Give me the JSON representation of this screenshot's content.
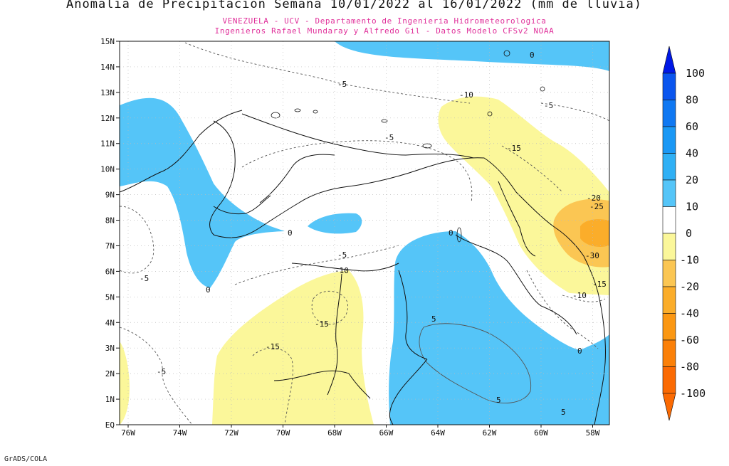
{
  "title": "Anomalia de Precipitacion Semana 10/01/2022 al 16/01/2022 (mm de lluvia)",
  "subtitle_line1": "VENEZUELA - UCV - Departamento de Ingenieria Hidrometeorologica",
  "subtitle_line2": "Ingenieros Rafael Mundaray y Alfredo Gil - Datos Modelo CFSv2 NOAA",
  "footer": "GrADS/COLA",
  "map": {
    "lat_labels": [
      "15N",
      "14N",
      "13N",
      "12N",
      "11N",
      "10N",
      "9N",
      "8N",
      "7N",
      "6N",
      "5N",
      "4N",
      "3N",
      "2N",
      "1N",
      "EQ"
    ],
    "lon_labels": [
      "76W",
      "74W",
      "72W",
      "70W",
      "68W",
      "66W",
      "64W",
      "62W",
      "60W",
      "58W"
    ],
    "contour_labels": {
      "c0_a": "0",
      "c0_b": "0",
      "c0_c": "0",
      "c0_d": "0",
      "c0_e": "0",
      "c5_a": "5",
      "c5_b": "5",
      "c5_c": "5",
      "cm5_a": "-5",
      "cm5_b": "-5",
      "cm5_c": "-5",
      "cm5_d": "-5",
      "cm5_e": "-5",
      "cm5_f": "-5",
      "cm10_a": "-10",
      "cm10_b": "-10",
      "cm10_c": "-10",
      "cm15_a": "-15",
      "cm15_b": "-15",
      "cm15_c": "-15",
      "cm15_d": "-15",
      "cm20": "-20",
      "cm25": "-25",
      "cm30": "-30"
    }
  },
  "colorbar": {
    "labels": [
      "100",
      "80",
      "60",
      "40",
      "20",
      "10",
      "0",
      "-10",
      "-20",
      "-40",
      "-60",
      "-80",
      "-100"
    ],
    "colors": [
      "#0018e6",
      "#0a55ee",
      "#0f78f2",
      "#1a98f5",
      "#2fb0f5",
      "#55c5f8",
      "#ffffff",
      "#fbf79a",
      "#fbc653",
      "#fbad2a",
      "#fb9712",
      "#fb8008",
      "#fb6a03"
    ]
  },
  "colors": {
    "positive": "#55c5f8",
    "neg10": "#fbf79a",
    "neg20": "#fbc653",
    "neg30": "#fbad2a"
  }
}
